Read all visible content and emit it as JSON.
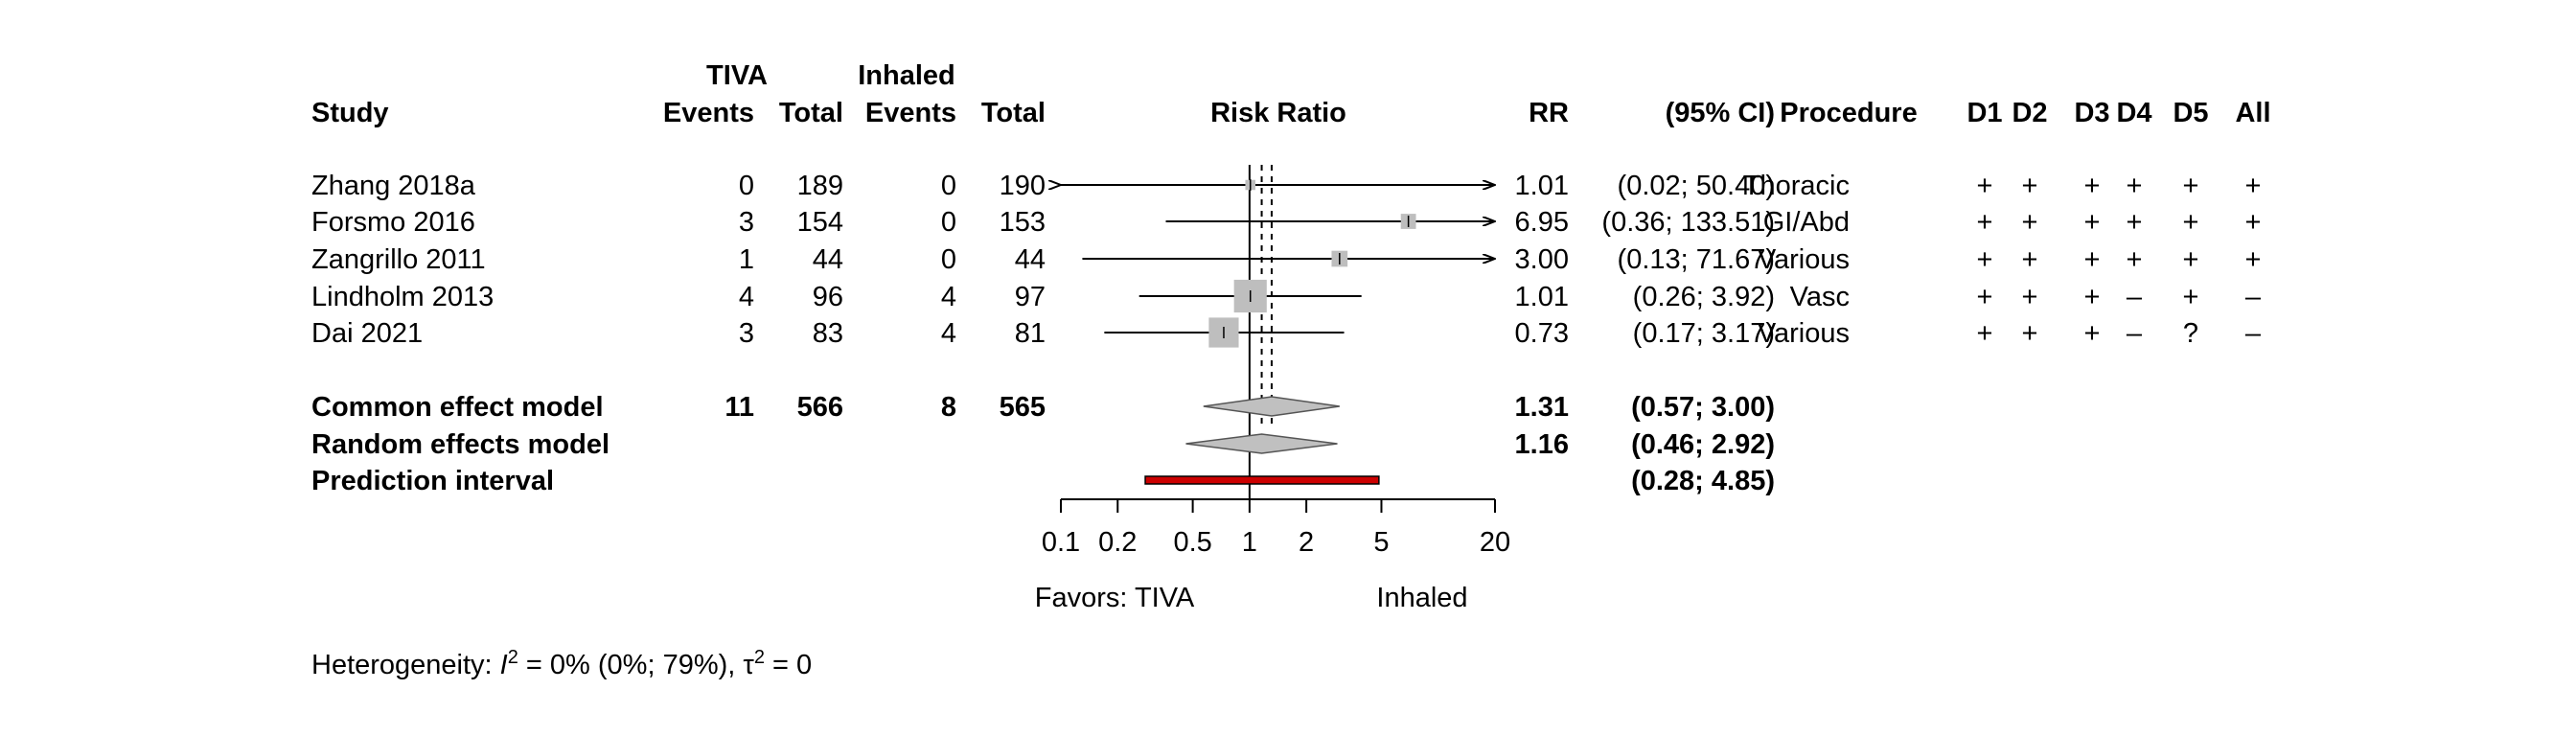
{
  "chart_data": {
    "type": "forest",
    "headers": {
      "study": "Study",
      "group1": "TIVA",
      "group2": "Inhaled",
      "events": "Events",
      "total": "Total",
      "risk_ratio": "Risk Ratio",
      "rr": "RR",
      "ci": "(95% CI)",
      "procedure": "Procedure",
      "domains": [
        "D1",
        "D2",
        "D3",
        "D4",
        "D5",
        "All"
      ]
    },
    "studies": [
      {
        "name": "Zhang 2018a",
        "e1": "0",
        "n1": "189",
        "e2": "0",
        "n2": "190",
        "rr": 1.01,
        "lo": 0.02,
        "hi": 50.4,
        "weight": 0.04,
        "rr_text": "1.01",
        "ci_text": "(0.02;  50.40)",
        "procedure": "Thoracic",
        "rob": [
          "+",
          "+",
          "+",
          "+",
          "+",
          "+"
        ]
      },
      {
        "name": "Forsmo 2016",
        "e1": "3",
        "n1": "154",
        "e2": "0",
        "n2": "153",
        "rr": 6.95,
        "lo": 0.36,
        "hi": 133.51,
        "weight": 0.09,
        "rr_text": "6.95",
        "ci_text": "(0.36; 133.51)",
        "procedure": "GI/Abd",
        "rob": [
          "+",
          "+",
          "+",
          "+",
          "+",
          "+"
        ]
      },
      {
        "name": "Zangrillo 2011",
        "e1": "1",
        "n1": "44",
        "e2": "0",
        "n2": "44",
        "rr": 3.0,
        "lo": 0.13,
        "hi": 71.67,
        "weight": 0.1,
        "rr_text": "3.00",
        "ci_text": "(0.13;  71.67)",
        "procedure": "Various",
        "rob": [
          "+",
          "+",
          "+",
          "+",
          "+",
          "+"
        ]
      },
      {
        "name": "Lindholm 2013",
        "e1": "4",
        "n1": "96",
        "e2": "4",
        "n2": "97",
        "rr": 1.01,
        "lo": 0.26,
        "hi": 3.92,
        "weight": 0.42,
        "rr_text": "1.01",
        "ci_text": "(0.26;   3.92)",
        "procedure": "Vasc",
        "rob": [
          "+",
          "+",
          "+",
          "–",
          "+",
          "–"
        ]
      },
      {
        "name": "Dai 2021",
        "e1": "3",
        "n1": "83",
        "e2": "4",
        "n2": "81",
        "rr": 0.73,
        "lo": 0.17,
        "hi": 3.17,
        "weight": 0.35,
        "rr_text": "0.73",
        "ci_text": "(0.17;   3.17)",
        "procedure": "Various",
        "rob": [
          "+",
          "+",
          "+",
          "–",
          "?",
          "–"
        ]
      }
    ],
    "common": {
      "label": "Common effect model",
      "e1": "11",
      "n1": "566",
      "e2": "8",
      "n2": "565",
      "rr": 1.31,
      "lo": 0.57,
      "hi": 3.0,
      "rr_text": "1.31",
      "ci_text": "(0.57;   3.00)"
    },
    "random": {
      "label": "Random effects model",
      "rr": 1.16,
      "lo": 0.46,
      "hi": 2.92,
      "rr_text": "1.16",
      "ci_text": "(0.46;   2.92)"
    },
    "prediction": {
      "label": "Prediction interval",
      "lo": 0.28,
      "hi": 4.85,
      "ci_text": "(0.28;   4.85)"
    },
    "x_axis": {
      "scale": "log",
      "ticks": [
        0.1,
        0.2,
        0.5,
        1,
        2,
        5,
        20
      ],
      "tick_labels": [
        "0.1",
        "0.2",
        "0.5",
        "1",
        "2",
        "5",
        "20"
      ],
      "xlim": [
        0.1,
        20
      ],
      "null_value": 1
    },
    "favors_left": "Favors: TIVA",
    "favors_right": "Inhaled",
    "heterogeneity": {
      "prefix": "Heterogeneity: ",
      "i2_symbol": "I",
      "sup": "2",
      "i2_text": " = 0% (0%; 79%), ",
      "tau": "τ",
      "tau_text": " = 0"
    },
    "colors": {
      "square": "#bebebe",
      "diamond": "#c0c0c0",
      "prediction": "#cc0000",
      "line": "#000000"
    }
  }
}
